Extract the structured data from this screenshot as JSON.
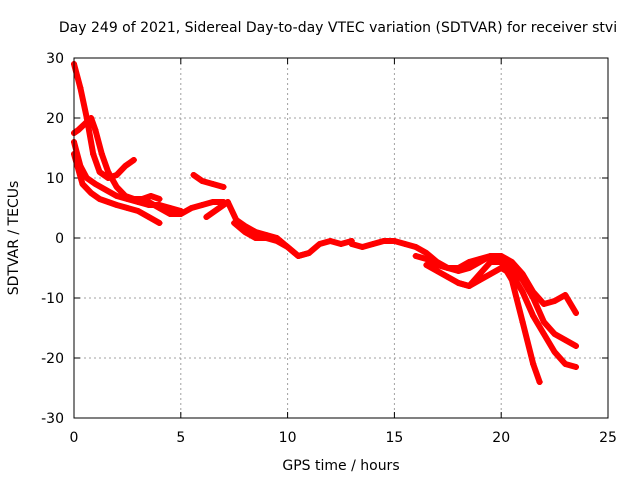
{
  "chart_data": {
    "type": "scatter",
    "title": "Day 249 of 2021, Sidereal Day-to-day VTEC variation (SDTVAR) for receiver stvi",
    "xlabel": "GPS time / hours",
    "ylabel": "SDTVAR / TECUs",
    "xlim": [
      0,
      25
    ],
    "ylim": [
      -30,
      30
    ],
    "xticks": [
      0,
      5,
      10,
      15,
      20,
      25
    ],
    "yticks": [
      -30,
      -20,
      -10,
      0,
      10,
      20,
      30
    ],
    "grid": true,
    "color": "#ff0000",
    "series": [
      {
        "name": "arc-a",
        "x": [
          0.0,
          0.3,
          0.6,
          0.9,
          1.2,
          1.6,
          2.0,
          2.4,
          2.8
        ],
        "y": [
          29,
          25,
          20,
          14,
          11,
          10,
          10.5,
          12,
          13
        ]
      },
      {
        "name": "arc-b",
        "x": [
          0.0,
          0.2,
          0.5,
          0.8,
          1.0,
          1.3,
          1.6,
          2.0,
          2.4,
          2.8,
          3.2,
          3.6,
          4.0
        ],
        "y": [
          17.5,
          18,
          19,
          20,
          18,
          14,
          11,
          8.5,
          7,
          6.5,
          6.5,
          7,
          6.5
        ]
      },
      {
        "name": "arc-c",
        "x": [
          0.0,
          0.3,
          0.6,
          1.0,
          1.5,
          2.0,
          2.5,
          3.0,
          3.5,
          4.0,
          4.5,
          5.0
        ],
        "y": [
          16,
          12,
          10,
          9,
          8,
          7,
          6.5,
          6,
          5.5,
          5.5,
          5,
          4.5
        ]
      },
      {
        "name": "arc-d",
        "x": [
          0.0,
          0.4,
          0.8,
          1.2,
          1.6,
          2.0,
          2.5,
          3.0,
          3.5,
          4.0
        ],
        "y": [
          14,
          9,
          7.5,
          6.5,
          6,
          5.5,
          5,
          4.5,
          3.5,
          2.5
        ]
      },
      {
        "name": "arc-e",
        "x": [
          3.5,
          4.0,
          4.5,
          5.0,
          5.5,
          6.0,
          6.5,
          7.0
        ],
        "y": [
          6,
          5,
          4,
          4,
          5,
          5.5,
          6,
          6
        ]
      },
      {
        "name": "arc-f",
        "x": [
          5.6,
          6.0,
          6.5,
          7.0
        ],
        "y": [
          10.5,
          9.5,
          9,
          8.5
        ]
      },
      {
        "name": "arc-g",
        "x": [
          6.2,
          6.8,
          7.2,
          7.6,
          8.0,
          8.5,
          9.0,
          9.5,
          10.0,
          10.5,
          11.0,
          11.5,
          12.0,
          12.5,
          13.0
        ],
        "y": [
          3.5,
          5,
          6,
          3,
          2,
          1,
          0.5,
          0,
          -1.5,
          -3,
          -2.5,
          -1,
          -0.5,
          -1,
          -0.5
        ]
      },
      {
        "name": "arc-h",
        "x": [
          7.5,
          8.0,
          8.5,
          9.0,
          9.5,
          10.0,
          10.5,
          11.0
        ],
        "y": [
          2.5,
          1,
          0,
          0,
          -0.5,
          -1.5,
          -3,
          -2.5
        ]
      },
      {
        "name": "arc-i",
        "x": [
          13.0,
          13.5,
          14.0,
          14.5,
          15.0,
          15.5,
          16.0,
          16.5,
          17.0,
          17.5,
          18.0,
          18.5,
          19.0,
          19.5,
          20.0,
          20.5,
          21.0,
          21.5,
          22.0,
          22.5,
          23.0,
          23.5
        ],
        "y": [
          -1,
          -1.5,
          -1,
          -0.5,
          -0.5,
          -1,
          -1.5,
          -2.5,
          -4,
          -5,
          -5.5,
          -5,
          -4,
          -3,
          -3,
          -4,
          -6,
          -9,
          -11,
          -10.5,
          -9.5,
          -12.5
        ]
      },
      {
        "name": "arc-j",
        "x": [
          16.0,
          16.5,
          17.0,
          17.5,
          18.0,
          18.5,
          19.0,
          19.5,
          20.0,
          20.5,
          21.0,
          21.5,
          22.0,
          22.5,
          23.0,
          23.5
        ],
        "y": [
          -3,
          -3.5,
          -4.5,
          -5,
          -5,
          -4,
          -3.5,
          -3,
          -3.5,
          -5,
          -7,
          -10,
          -14,
          -16,
          -17,
          -18
        ]
      },
      {
        "name": "arc-k",
        "x": [
          16.5,
          17.0,
          17.5,
          18.0,
          18.5,
          19.0,
          19.5,
          20.0,
          20.5,
          21.0,
          21.5,
          22.0,
          22.5,
          23.0,
          23.5
        ],
        "y": [
          -4.5,
          -5.5,
          -6.5,
          -7.5,
          -8,
          -7,
          -6,
          -5,
          -6,
          -9,
          -13,
          -16,
          -19,
          -21,
          -21.5
        ]
      },
      {
        "name": "arc-l",
        "x": [
          18.0,
          18.5,
          19.0,
          19.5,
          20.0,
          20.5,
          21.0,
          21.5,
          21.8
        ],
        "y": [
          -7.5,
          -8,
          -6,
          -4,
          -4,
          -7,
          -14,
          -21,
          -24
        ]
      }
    ]
  }
}
